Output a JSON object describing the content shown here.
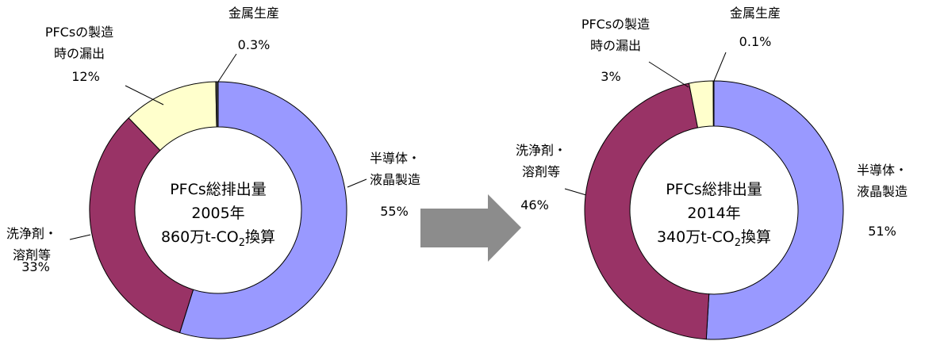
{
  "chart_data": [
    {
      "type": "donut",
      "categories": [
        [
          "半導体・",
          "液晶製造"
        ],
        [
          "洗浄剤・",
          "溶剤等"
        ],
        [
          "PFCsの製造",
          "時の漏出"
        ],
        [
          "金属生産"
        ]
      ],
      "values": [
        55,
        33,
        12,
        0.3
      ],
      "value_labels": [
        "55%",
        "33%",
        "12%",
        "0.3%"
      ],
      "colors": [
        "#9999ff",
        "#993366",
        "#ffffcc",
        "#404040"
      ],
      "center_lines": [
        "PFCs総排出量",
        "2005年",
        [
          "860万t-CO",
          "2",
          "換算"
        ]
      ]
    },
    {
      "type": "donut",
      "categories": [
        [
          "半導体・",
          "液晶製造"
        ],
        [
          "洗浄剤・",
          "溶剤等"
        ],
        [
          "PFCsの製造",
          "時の漏出"
        ],
        [
          "金属生産"
        ]
      ],
      "values": [
        51,
        46,
        3,
        0.1
      ],
      "value_labels": [
        "51%",
        "46%",
        "3%",
        "0.1%"
      ],
      "colors": [
        "#9999ff",
        "#993366",
        "#ffffcc",
        "#404040"
      ],
      "center_lines": [
        "PFCs総排出量",
        "2014年",
        [
          "340万t-CO",
          "2",
          "換算"
        ]
      ]
    }
  ]
}
